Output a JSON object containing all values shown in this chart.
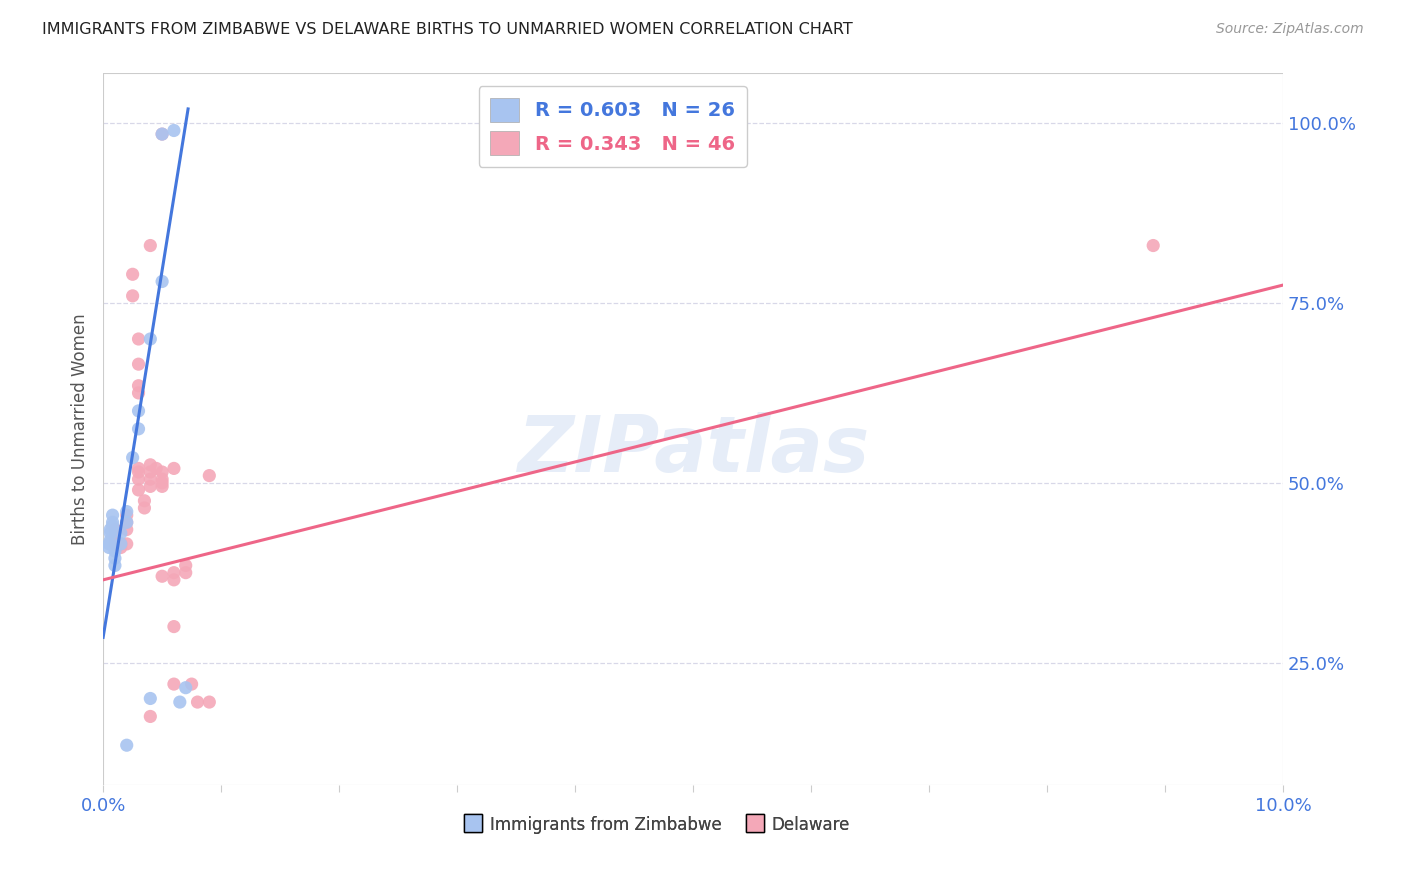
{
  "title": "IMMIGRANTS FROM ZIMBABWE VS DELAWARE BIRTHS TO UNMARRIED WOMEN CORRELATION CHART",
  "source": "Source: ZipAtlas.com",
  "ylabel": "Births to Unmarried Women",
  "ytick_labels": [
    "100.0%",
    "75.0%",
    "50.0%",
    "25.0%"
  ],
  "ytick_values": [
    1.0,
    0.75,
    0.5,
    0.25
  ],
  "legend_blue": "R = 0.603   N = 26",
  "legend_pink": "R = 0.343   N = 46",
  "legend_label_blue": "Immigrants from Zimbabwe",
  "legend_label_pink": "Delaware",
  "watermark": "ZIPatlas",
  "blue_color": "#a8c4f0",
  "pink_color": "#f4a8b8",
  "blue_line_color": "#4477dd",
  "pink_line_color": "#ee6688",
  "blue_scatter": [
    [
      0.005,
      0.985
    ],
    [
      0.006,
      0.99
    ],
    [
      0.005,
      0.78
    ],
    [
      0.004,
      0.7
    ],
    [
      0.003,
      0.6
    ],
    [
      0.003,
      0.575
    ],
    [
      0.0025,
      0.535
    ],
    [
      0.002,
      0.46
    ],
    [
      0.002,
      0.445
    ],
    [
      0.0015,
      0.43
    ],
    [
      0.0015,
      0.415
    ],
    [
      0.001,
      0.405
    ],
    [
      0.001,
      0.395
    ],
    [
      0.001,
      0.385
    ],
    [
      0.0008,
      0.455
    ],
    [
      0.0008,
      0.445
    ],
    [
      0.0008,
      0.44
    ],
    [
      0.0006,
      0.435
    ],
    [
      0.0006,
      0.43
    ],
    [
      0.0006,
      0.42
    ],
    [
      0.0005,
      0.415
    ],
    [
      0.0005,
      0.41
    ],
    [
      0.007,
      0.215
    ],
    [
      0.0065,
      0.195
    ],
    [
      0.004,
      0.2
    ],
    [
      0.002,
      0.135
    ]
  ],
  "pink_scatter": [
    [
      0.005,
      0.985
    ],
    [
      0.004,
      0.83
    ],
    [
      0.089,
      0.83
    ],
    [
      0.0025,
      0.79
    ],
    [
      0.0025,
      0.76
    ],
    [
      0.003,
      0.7
    ],
    [
      0.003,
      0.665
    ],
    [
      0.003,
      0.635
    ],
    [
      0.003,
      0.625
    ],
    [
      0.003,
      0.52
    ],
    [
      0.003,
      0.515
    ],
    [
      0.003,
      0.505
    ],
    [
      0.003,
      0.49
    ],
    [
      0.0035,
      0.475
    ],
    [
      0.0035,
      0.465
    ],
    [
      0.004,
      0.525
    ],
    [
      0.004,
      0.515
    ],
    [
      0.004,
      0.505
    ],
    [
      0.004,
      0.495
    ],
    [
      0.0045,
      0.52
    ],
    [
      0.005,
      0.515
    ],
    [
      0.005,
      0.505
    ],
    [
      0.005,
      0.495
    ],
    [
      0.005,
      0.5
    ],
    [
      0.006,
      0.52
    ],
    [
      0.005,
      0.37
    ],
    [
      0.006,
      0.375
    ],
    [
      0.006,
      0.365
    ],
    [
      0.006,
      0.3
    ],
    [
      0.006,
      0.22
    ],
    [
      0.007,
      0.385
    ],
    [
      0.007,
      0.375
    ],
    [
      0.0075,
      0.22
    ],
    [
      0.008,
      0.195
    ],
    [
      0.009,
      0.51
    ],
    [
      0.009,
      0.195
    ],
    [
      0.002,
      0.455
    ],
    [
      0.002,
      0.445
    ],
    [
      0.002,
      0.435
    ],
    [
      0.002,
      0.415
    ],
    [
      0.0015,
      0.415
    ],
    [
      0.0015,
      0.41
    ],
    [
      0.001,
      0.435
    ],
    [
      0.001,
      0.425
    ],
    [
      0.001,
      0.415
    ],
    [
      0.004,
      0.175
    ]
  ],
  "blue_line_x": [
    0.0,
    0.0072
  ],
  "blue_line_y": [
    0.285,
    1.02
  ],
  "pink_line_x": [
    0.0,
    0.1
  ],
  "pink_line_y": [
    0.365,
    0.775
  ],
  "xmin": 0.0,
  "xmax": 0.1,
  "ymin": 0.08,
  "ymax": 1.07,
  "background_color": "#ffffff",
  "grid_color": "#d8d8e8",
  "title_color": "#222222",
  "axis_color": "#4477dd",
  "ytick_color": "#4477dd"
}
